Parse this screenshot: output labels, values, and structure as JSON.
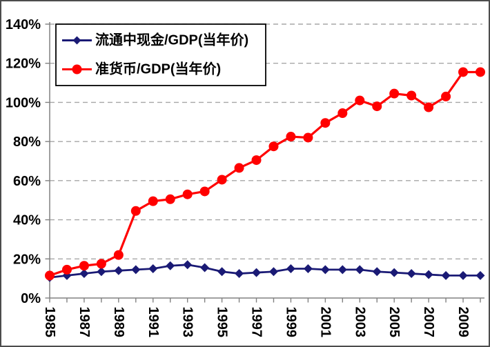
{
  "chart_data": {
    "type": "line",
    "title": "",
    "xlabel": "",
    "ylabel": "",
    "x": [
      1985,
      1986,
      1987,
      1988,
      1989,
      1990,
      1991,
      1992,
      1993,
      1994,
      1995,
      1996,
      1997,
      1998,
      1999,
      2000,
      2001,
      2002,
      2003,
      2004,
      2005,
      2006,
      2007,
      2008,
      2009,
      2010
    ],
    "x_tick_labels": [
      "1985",
      "1987",
      "1989",
      "1991",
      "1993",
      "1995",
      "1997",
      "1999",
      "2001",
      "2003",
      "2005",
      "2007",
      "2009"
    ],
    "y_ticks": [
      0,
      20,
      40,
      60,
      80,
      100,
      120,
      140
    ],
    "y_tick_suffix": "%",
    "ylim": [
      0,
      140
    ],
    "grid": "dashed-horizontal",
    "legend_position": "top-left-inside",
    "series": [
      {
        "name": "流通中现金/GDP(当年价)",
        "marker": "diamond",
        "color": "#1a1a75",
        "values": [
          10.5,
          11.5,
          12.5,
          13.5,
          14,
          14.5,
          15,
          16.5,
          17,
          15.5,
          13.5,
          12.5,
          13,
          13.5,
          15,
          15,
          14.5,
          14.5,
          14.5,
          13.5,
          13,
          12.5,
          12,
          11.5,
          11.5,
          11.5
        ]
      },
      {
        "name": "准货币/GDP(当年价)",
        "marker": "circle",
        "color": "#ff0000",
        "values": [
          11.5,
          14.5,
          16.5,
          17.5,
          22,
          44.5,
          49.5,
          50.5,
          53,
          54.5,
          60.5,
          66.5,
          70.5,
          77.5,
          82.5,
          82,
          89.5,
          94.5,
          101,
          98,
          104.5,
          103.5,
          97.5,
          103,
          115.5,
          115.5
        ]
      }
    ],
    "colors": {
      "background": "#ffffff",
      "frame_border": "#4c4c4c",
      "gridline": "#a6a6a6",
      "axis": "#808080",
      "tick_label": "#000000",
      "legend_border": "#000000",
      "legend_fill": "#ffffff"
    }
  }
}
